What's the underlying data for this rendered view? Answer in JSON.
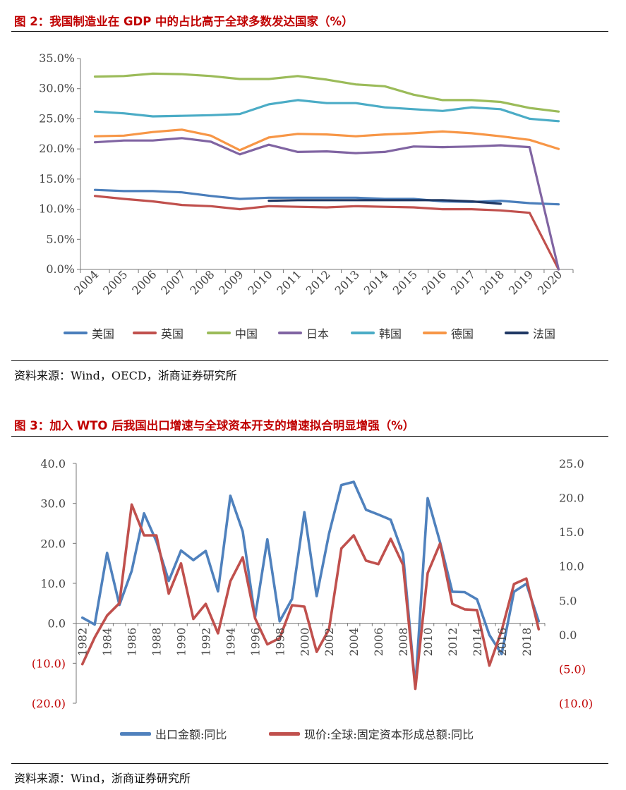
{
  "figure2": {
    "title": "图 2：我国制造业在 GDP 中的占比高于全球多数发达国家（%）",
    "source": "资料来源：Wind，OECD，浙商证券研究所"
  },
  "figure3": {
    "title": "图 3：加入 WTO 后我国出口增速与全球资本开支的增速拟合明显增强（%）",
    "source": "资料来源：Wind，浙商证券研究所"
  },
  "colors": {
    "us": "#4a7ebb",
    "uk": "#c0504d",
    "cn": "#9bbb59",
    "jp": "#8064a2",
    "kr": "#4bacc6",
    "de": "#f79646",
    "fr": "#1f3864",
    "export": "#4f81bd",
    "capex": "#c0504d",
    "neg_label": "#c00000"
  },
  "chart_data": [
    {
      "type": "line",
      "title": "我国制造业在 GDP 中的占比高于全球多数发达国家（%）",
      "x": [
        "2004",
        "2005",
        "2006",
        "2007",
        "2008",
        "2009",
        "2010",
        "2011",
        "2012",
        "2013",
        "2014",
        "2015",
        "2016",
        "2017",
        "2018",
        "2019",
        "2020"
      ],
      "y_ticks": [
        "35.0%",
        "30.0%",
        "25.0%",
        "20.0%",
        "15.0%",
        "10.0%",
        "5.0%",
        "0.0%"
      ],
      "ylim": [
        0,
        35
      ],
      "legend_position": "bottom",
      "series": [
        {
          "key": "us",
          "name": "美国",
          "values": [
            13.2,
            13.0,
            13.0,
            12.8,
            12.2,
            11.7,
            11.9,
            11.9,
            11.9,
            11.9,
            11.7,
            11.7,
            11.3,
            11.2,
            11.4,
            11.0,
            10.8
          ]
        },
        {
          "key": "uk",
          "name": "英国",
          "values": [
            12.2,
            11.7,
            11.3,
            10.7,
            10.5,
            10.0,
            10.5,
            10.4,
            10.3,
            10.5,
            10.4,
            10.3,
            10.0,
            10.0,
            9.8,
            9.4,
            0.0
          ]
        },
        {
          "key": "cn",
          "name": "中国",
          "values": [
            32.0,
            32.1,
            32.5,
            32.4,
            32.1,
            31.6,
            31.6,
            32.1,
            31.5,
            30.7,
            30.4,
            29.0,
            28.1,
            28.1,
            27.8,
            26.8,
            26.2
          ]
        },
        {
          "key": "jp",
          "name": "日本",
          "values": [
            21.1,
            21.4,
            21.4,
            21.8,
            21.2,
            19.1,
            20.7,
            19.5,
            19.6,
            19.3,
            19.5,
            20.4,
            20.3,
            20.4,
            20.6,
            20.3,
            0.0
          ]
        },
        {
          "key": "kr",
          "name": "韩国",
          "values": [
            26.2,
            25.9,
            25.4,
            25.5,
            25.6,
            25.8,
            27.4,
            28.1,
            27.6,
            27.6,
            26.9,
            26.6,
            26.3,
            26.9,
            26.6,
            25.0,
            24.6
          ]
        },
        {
          "key": "de",
          "name": "德国",
          "values": [
            22.1,
            22.2,
            22.8,
            23.2,
            22.2,
            19.8,
            21.9,
            22.5,
            22.4,
            22.1,
            22.4,
            22.6,
            22.9,
            22.6,
            22.1,
            21.5,
            20.0
          ]
        },
        {
          "key": "fr",
          "name": "法国",
          "values": [
            null,
            null,
            null,
            null,
            null,
            null,
            11.4,
            11.5,
            11.5,
            11.5,
            11.5,
            11.5,
            11.5,
            11.3,
            10.9,
            null,
            null
          ]
        }
      ]
    },
    {
      "type": "line",
      "title": "加入 WTO 后我国出口增速与全球资本开支的增速拟合明显增强（%）",
      "x": [
        1982,
        1983,
        1984,
        1985,
        1986,
        1987,
        1988,
        1989,
        1990,
        1991,
        1992,
        1993,
        1994,
        1995,
        1996,
        1997,
        1998,
        1999,
        2000,
        2001,
        2002,
        2003,
        2004,
        2005,
        2006,
        2007,
        2008,
        2009,
        2010,
        2011,
        2012,
        2013,
        2014,
        2015,
        2016,
        2017,
        2018,
        2019
      ],
      "x_tick_labels": [
        "1982",
        "1984",
        "1986",
        "1988",
        "1990",
        "1992",
        "1994",
        "1996",
        "1998",
        "2000",
        "2002",
        "2004",
        "2006",
        "2008",
        "2010",
        "2012",
        "2014",
        "2016",
        "2018"
      ],
      "y_left_ticks": [
        "40.0",
        "30.0",
        "20.0",
        "10.0",
        "0.0",
        "(10.0)",
        "(20.0)"
      ],
      "y_right_ticks": [
        "25.0",
        "20.0",
        "15.0",
        "10.0",
        "5.0",
        "0.0",
        "(5.0)",
        "(10.0)"
      ],
      "ylim_left": [
        -20,
        40
      ],
      "ylim_right": [
        -10,
        25
      ],
      "legend_position": "bottom",
      "series": [
        {
          "key": "export",
          "name": "出口金额:同比",
          "axis": "left",
          "values": [
            1.4,
            -0.3,
            17.6,
            4.6,
            13.1,
            27.5,
            20.5,
            10.6,
            18.2,
            15.8,
            18.1,
            8.0,
            31.9,
            23.0,
            1.5,
            21.0,
            0.5,
            6.1,
            27.8,
            6.8,
            22.4,
            34.6,
            35.4,
            28.4,
            27.2,
            25.9,
            17.3,
            -16.0,
            31.3,
            20.3,
            7.9,
            7.8,
            6.0,
            -2.9,
            -7.7,
            7.9,
            9.9,
            0.5
          ]
        },
        {
          "key": "capex",
          "name": "现价:全球:固定资本形成总额:同比",
          "axis": "right",
          "values": [
            -4.3,
            -0.4,
            2.8,
            4.6,
            19.0,
            14.5,
            14.5,
            6.0,
            10.4,
            2.3,
            4.5,
            0.2,
            7.8,
            11.3,
            2.4,
            -1.4,
            -0.5,
            4.3,
            4.1,
            -2.5,
            0.8,
            12.6,
            14.5,
            10.8,
            10.3,
            14.0,
            10.2,
            -7.9,
            9.0,
            13.3,
            4.5,
            3.7,
            3.6,
            -4.5,
            0.6,
            7.4,
            8.2,
            0.8
          ]
        }
      ]
    }
  ]
}
